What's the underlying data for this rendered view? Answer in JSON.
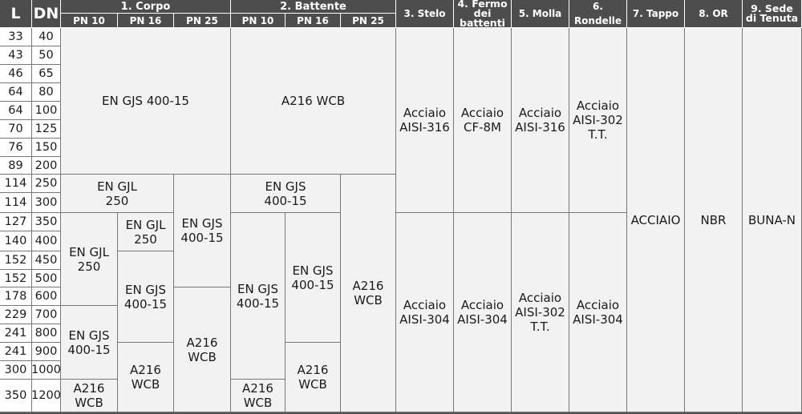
{
  "header": {
    "l": "L",
    "dn": "DN",
    "groups": [
      "1. Corpo",
      "2. Battente"
    ],
    "pn": [
      "PN 10",
      "PN 16",
      "PN 25",
      "PN 10",
      "PN 16",
      "PN 25"
    ],
    "cols": [
      "3. Stelo",
      "4. Fermo\ndei battenti",
      "5. Molla",
      "6. Rondelle",
      "7. Tappo",
      "8. OR",
      "9. Sede\ndi Tenuta"
    ]
  },
  "rows": {
    "L": [
      "33",
      "43",
      "46",
      "64",
      "64",
      "70",
      "76",
      "89",
      "114",
      "114",
      "127",
      "140",
      "152",
      "152",
      "178",
      "229",
      "241",
      "241",
      "300",
      "350"
    ],
    "DN": [
      "40",
      "50",
      "65",
      "80",
      "100",
      "125",
      "150",
      "200",
      "250",
      "300",
      "350",
      "400",
      "450",
      "500",
      "600",
      "700",
      "800",
      "900",
      "1000",
      "1200"
    ]
  },
  "cells": {
    "corpo_top": "EN GJS 400-15",
    "corpo_gjl_a": "EN GJL\n250",
    "corpo_pn25_gjs": "EN GJS\n400-15",
    "corpo_pn10_gjl": "EN GJL\n250",
    "corpo_pn16_gjl": "EN GJL\n250",
    "corpo_pn16_gjs": "EN GJS\n400-15",
    "corpo_pn25_wcb": "A216\nWCB",
    "corpo_pn10_gjs": "EN GJS\n400-15",
    "corpo_pn16_wcb": "A216\nWCB",
    "corpo_pn10_wcb": "A216\nWCB",
    "batt_top": "A216 WCB",
    "batt_gjs_a": "EN GJS\n400-15",
    "batt_pn25_wcb": "A216\nWCB",
    "batt_pn10_gjs": "EN GJS\n400-15",
    "batt_pn16_gjs": "EN GJS\n400-15",
    "batt_pn16_wcb": "A216\nWCB",
    "batt_pn10_wcb": "A216\nWCB",
    "stelo_top": "Acciaio\nAISI-316",
    "stelo_bot": "Acciaio\nAISI-304",
    "fermo_top": "Acciaio\nCF-8M",
    "fermo_bot": "Acciaio\nAISI-304",
    "molla_top": "Acciaio\nAISI-316",
    "molla_bot": "Acciaio\nAISI-302\nT.T.",
    "rond_top": "Acciaio\nAISI-302\nT.T.",
    "rond_bot": "Acciaio\nAISI-304",
    "tappo": "ACCIAIO",
    "or": "NBR",
    "sede": "BUNA-N"
  }
}
